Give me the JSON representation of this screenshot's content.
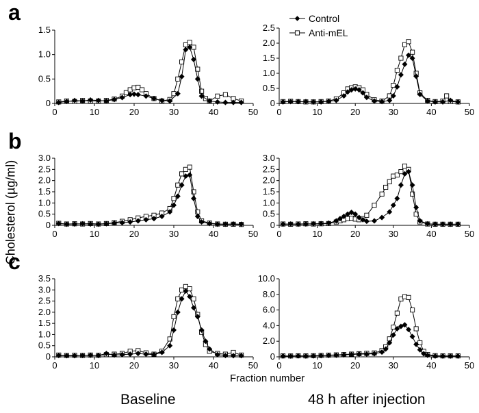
{
  "figure": {
    "ylabel": "Cholesterol (µg/ml)",
    "xlabel": "Fraction number",
    "col_captions": [
      "Baseline",
      "48 h after injection"
    ],
    "panel_letters": [
      "a",
      "b",
      "c"
    ],
    "legend": [
      "Control",
      "Anti-mEL"
    ]
  },
  "chart_data": [
    {
      "type": "line",
      "panel": "a",
      "column": "Baseline",
      "xlim": [
        0,
        50
      ],
      "ylim": [
        0,
        1.5
      ],
      "yticks": [
        "0",
        "0.5",
        "1.0",
        "1.5"
      ],
      "xticks": [
        "0",
        "10",
        "20",
        "30",
        "40",
        "50"
      ],
      "series": [
        {
          "name": "Control",
          "x": [
            1,
            3,
            5,
            7,
            9,
            11,
            13,
            15,
            17,
            19,
            20,
            21,
            23,
            25,
            27,
            29,
            31,
            32,
            33,
            34,
            35,
            36,
            37,
            39,
            41,
            43,
            45,
            47
          ],
          "y": [
            0.02,
            0.04,
            0.06,
            0.05,
            0.07,
            0.06,
            0.05,
            0.08,
            0.12,
            0.18,
            0.19,
            0.18,
            0.15,
            0.1,
            0.06,
            0.05,
            0.2,
            0.55,
            1.1,
            1.15,
            0.9,
            0.5,
            0.15,
            0.05,
            0.03,
            0.02,
            0.02,
            0.02
          ]
        },
        {
          "name": "Anti-mEL",
          "x": [
            1,
            3,
            5,
            7,
            9,
            11,
            13,
            15,
            17,
            18,
            19,
            20,
            21,
            22,
            23,
            25,
            27,
            29,
            30,
            31,
            32,
            33,
            34,
            35,
            36,
            37,
            38,
            39,
            41,
            43,
            45,
            47
          ],
          "y": [
            0.03,
            0.05,
            0.04,
            0.06,
            0.05,
            0.05,
            0.06,
            0.09,
            0.15,
            0.22,
            0.28,
            0.32,
            0.33,
            0.28,
            0.2,
            0.1,
            0.05,
            0.08,
            0.2,
            0.5,
            0.85,
            1.2,
            1.25,
            1.15,
            0.7,
            0.25,
            0.1,
            0.05,
            0.15,
            0.18,
            0.1,
            0.05
          ]
        }
      ]
    },
    {
      "type": "line",
      "panel": "a",
      "column": "48 h after injection",
      "xlim": [
        0,
        50
      ],
      "ylim": [
        0,
        2.5
      ],
      "yticks": [
        "0",
        "0.5",
        "1.0",
        "1.5",
        "2.0",
        "2.5"
      ],
      "xticks": [
        "0",
        "10",
        "20",
        "30",
        "40",
        "50"
      ],
      "series": [
        {
          "name": "Control",
          "x": [
            1,
            3,
            5,
            7,
            9,
            11,
            13,
            15,
            17,
            18,
            19,
            20,
            21,
            22,
            23,
            25,
            27,
            29,
            30,
            31,
            32,
            33,
            34,
            35,
            36,
            37,
            39,
            41,
            43,
            45,
            47
          ],
          "y": [
            0.05,
            0.06,
            0.06,
            0.06,
            0.05,
            0.05,
            0.07,
            0.1,
            0.25,
            0.38,
            0.45,
            0.48,
            0.45,
            0.35,
            0.2,
            0.08,
            0.06,
            0.1,
            0.25,
            0.55,
            0.95,
            1.3,
            1.6,
            1.5,
            0.9,
            0.3,
            0.08,
            0.05,
            0.05,
            0.1,
            0.05
          ]
        },
        {
          "name": "Anti-mEL",
          "x": [
            1,
            3,
            5,
            7,
            9,
            11,
            13,
            15,
            17,
            18,
            19,
            20,
            21,
            22,
            23,
            25,
            27,
            29,
            30,
            31,
            32,
            33,
            34,
            35,
            36,
            37,
            39,
            41,
            43,
            44,
            45,
            47
          ],
          "y": [
            0.06,
            0.07,
            0.06,
            0.05,
            0.05,
            0.06,
            0.08,
            0.15,
            0.35,
            0.48,
            0.52,
            0.55,
            0.52,
            0.45,
            0.3,
            0.12,
            0.08,
            0.25,
            0.6,
            1.1,
            1.5,
            1.95,
            2.05,
            1.7,
            1.0,
            0.35,
            0.1,
            0.06,
            0.08,
            0.25,
            0.06,
            0.05
          ]
        }
      ]
    },
    {
      "type": "line",
      "panel": "b",
      "column": "Baseline",
      "xlim": [
        0,
        50
      ],
      "ylim": [
        0,
        3.0
      ],
      "yticks": [
        "0",
        "0.5",
        "1.0",
        "1.5",
        "2.0",
        "2.5",
        "3.0"
      ],
      "xticks": [
        "0",
        "10",
        "20",
        "30",
        "40",
        "50"
      ],
      "series": [
        {
          "name": "Control",
          "x": [
            1,
            3,
            5,
            7,
            9,
            11,
            13,
            15,
            17,
            19,
            21,
            23,
            25,
            27,
            29,
            30,
            31,
            32,
            33,
            34,
            35,
            36,
            37,
            39,
            41,
            43,
            45,
            47
          ],
          "y": [
            0.08,
            0.05,
            0.06,
            0.07,
            0.06,
            0.05,
            0.07,
            0.1,
            0.12,
            0.15,
            0.2,
            0.25,
            0.3,
            0.4,
            0.6,
            0.9,
            1.3,
            1.8,
            2.2,
            2.25,
            1.2,
            0.4,
            0.15,
            0.08,
            0.05,
            0.05,
            0.06,
            0.05
          ]
        },
        {
          "name": "Anti-mEL",
          "x": [
            1,
            3,
            5,
            7,
            9,
            11,
            13,
            15,
            17,
            19,
            21,
            23,
            25,
            27,
            29,
            30,
            31,
            32,
            33,
            34,
            35,
            36,
            37,
            39,
            41,
            43,
            45,
            47
          ],
          "y": [
            0.09,
            0.06,
            0.07,
            0.06,
            0.08,
            0.06,
            0.08,
            0.12,
            0.18,
            0.25,
            0.33,
            0.4,
            0.45,
            0.55,
            0.75,
            1.2,
            1.8,
            2.3,
            2.5,
            2.6,
            1.5,
            0.6,
            0.2,
            0.1,
            0.06,
            0.05,
            0.05,
            0.04
          ]
        }
      ]
    },
    {
      "type": "line",
      "panel": "b",
      "column": "48 h after injection",
      "xlim": [
        0,
        50
      ],
      "ylim": [
        0,
        3.0
      ],
      "yticks": [
        "0",
        "0.5",
        "1.0",
        "1.5",
        "2.0",
        "2.5",
        "3.0"
      ],
      "xticks": [
        "0",
        "10",
        "20",
        "30",
        "40",
        "50"
      ],
      "series": [
        {
          "name": "Control",
          "x": [
            1,
            3,
            5,
            7,
            9,
            11,
            13,
            15,
            16,
            17,
            18,
            19,
            20,
            21,
            22,
            23,
            25,
            27,
            29,
            30,
            31,
            32,
            33,
            34,
            35,
            36,
            37,
            39,
            41,
            43,
            45,
            47
          ],
          "y": [
            0.05,
            0.06,
            0.05,
            0.06,
            0.07,
            0.08,
            0.1,
            0.2,
            0.3,
            0.4,
            0.5,
            0.58,
            0.5,
            0.35,
            0.25,
            0.18,
            0.2,
            0.35,
            0.6,
            0.9,
            1.2,
            1.8,
            2.3,
            2.4,
            1.8,
            0.8,
            0.2,
            0.07,
            0.05,
            0.05,
            0.05,
            0.05
          ]
        },
        {
          "name": "Anti-mEL",
          "x": [
            1,
            3,
            5,
            7,
            9,
            11,
            13,
            15,
            16,
            17,
            18,
            19,
            20,
            21,
            22,
            23,
            25,
            27,
            28,
            29,
            30,
            31,
            32,
            33,
            34,
            35,
            36,
            37,
            39,
            41,
            43,
            45,
            47
          ],
          "y": [
            0.06,
            0.05,
            0.06,
            0.07,
            0.06,
            0.07,
            0.08,
            0.15,
            0.2,
            0.25,
            0.3,
            0.32,
            0.28,
            0.25,
            0.3,
            0.45,
            0.9,
            1.4,
            1.7,
            1.95,
            2.2,
            2.25,
            2.4,
            2.65,
            2.5,
            1.4,
            0.5,
            0.15,
            0.06,
            0.05,
            0.05,
            0.05,
            0.05
          ]
        }
      ]
    },
    {
      "type": "line",
      "panel": "c",
      "column": "Baseline",
      "xlim": [
        0,
        50
      ],
      "ylim": [
        0,
        3.5
      ],
      "yticks": [
        "0",
        "0.5",
        "1.0",
        "1.5",
        "2.0",
        "2.5",
        "3.0",
        "3.5"
      ],
      "xticks": [
        "0",
        "10",
        "20",
        "30",
        "40",
        "50"
      ],
      "series": [
        {
          "name": "Control",
          "x": [
            1,
            3,
            5,
            7,
            9,
            11,
            13,
            15,
            17,
            19,
            21,
            23,
            25,
            27,
            29,
            30,
            31,
            32,
            33,
            34,
            35,
            36,
            37,
            38,
            39,
            41,
            43,
            45,
            47
          ],
          "y": [
            0.06,
            0.05,
            0.05,
            0.06,
            0.07,
            0.06,
            0.15,
            0.08,
            0.1,
            0.12,
            0.15,
            0.12,
            0.1,
            0.2,
            0.5,
            1.2,
            2.0,
            2.6,
            2.95,
            2.7,
            2.2,
            1.8,
            1.2,
            0.7,
            0.35,
            0.1,
            0.06,
            0.05,
            0.05
          ]
        },
        {
          "name": "Anti-mEL",
          "x": [
            1,
            3,
            5,
            7,
            9,
            11,
            13,
            15,
            17,
            19,
            21,
            23,
            25,
            27,
            29,
            30,
            31,
            32,
            33,
            34,
            35,
            36,
            37,
            38,
            39,
            41,
            43,
            45,
            47
          ],
          "y": [
            0.08,
            0.06,
            0.07,
            0.06,
            0.08,
            0.07,
            0.1,
            0.12,
            0.15,
            0.25,
            0.28,
            0.18,
            0.12,
            0.25,
            0.8,
            1.8,
            2.6,
            3.0,
            3.15,
            3.05,
            2.6,
            1.9,
            1.1,
            0.55,
            0.25,
            0.15,
            0.12,
            0.2,
            0.08
          ]
        }
      ]
    },
    {
      "type": "line",
      "panel": "c",
      "column": "48 h after injection",
      "xlim": [
        0,
        50
      ],
      "ylim": [
        0,
        10.0
      ],
      "yticks": [
        "0",
        "2.0",
        "4.0",
        "6.0",
        "8.0",
        "10.0"
      ],
      "xticks": [
        "0",
        "10",
        "20",
        "30",
        "40",
        "50"
      ],
      "series": [
        {
          "name": "Control",
          "x": [
            1,
            3,
            5,
            7,
            9,
            11,
            13,
            15,
            17,
            19,
            21,
            23,
            25,
            27,
            28,
            29,
            30,
            31,
            32,
            33,
            34,
            35,
            36,
            37,
            38,
            39,
            41,
            43,
            45,
            47
          ],
          "y": [
            0.1,
            0.1,
            0.12,
            0.1,
            0.12,
            0.15,
            0.18,
            0.2,
            0.25,
            0.3,
            0.35,
            0.35,
            0.4,
            0.6,
            1.0,
            1.8,
            2.8,
            3.6,
            3.9,
            4.1,
            3.5,
            2.6,
            1.6,
            0.9,
            0.4,
            0.2,
            0.1,
            0.1,
            0.1,
            0.1
          ]
        },
        {
          "name": "Anti-mEL",
          "x": [
            1,
            3,
            5,
            7,
            9,
            11,
            13,
            15,
            17,
            19,
            21,
            23,
            25,
            27,
            28,
            29,
            30,
            31,
            32,
            33,
            34,
            35,
            36,
            37,
            38,
            39,
            41,
            43,
            45,
            47
          ],
          "y": [
            0.12,
            0.11,
            0.13,
            0.12,
            0.14,
            0.18,
            0.22,
            0.25,
            0.3,
            0.35,
            0.4,
            0.45,
            0.5,
            0.8,
            1.3,
            2.3,
            3.8,
            5.6,
            7.4,
            7.7,
            7.6,
            6.0,
            3.6,
            1.8,
            0.7,
            0.3,
            0.15,
            0.12,
            0.12,
            0.12
          ]
        }
      ]
    }
  ]
}
